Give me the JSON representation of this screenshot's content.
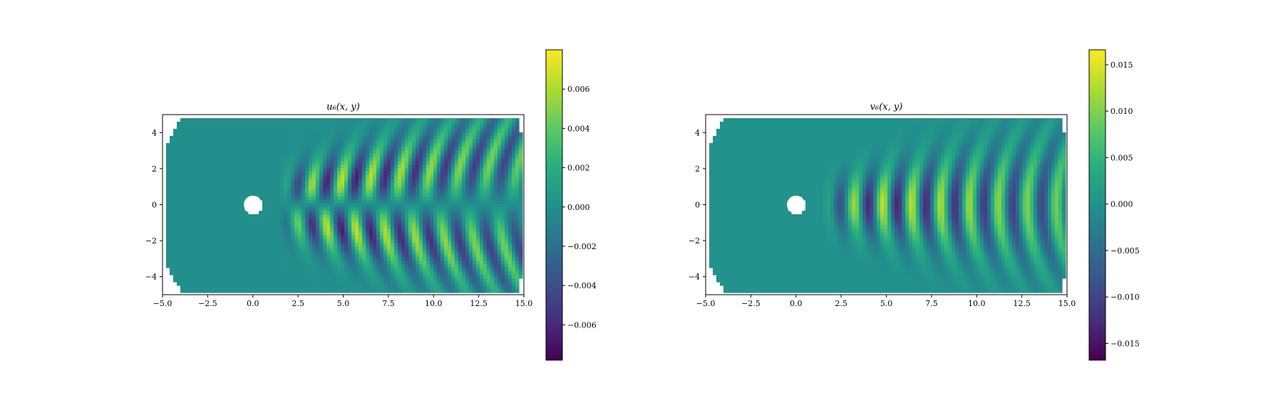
{
  "chart_data": [
    {
      "type": "heatmap",
      "title": "u₆(x, y)",
      "xlabel": "",
      "ylabel": "",
      "xlim": [
        -5.0,
        15.0
      ],
      "ylim": [
        -5.0,
        5.0
      ],
      "xticks": [
        "−5.0",
        "−2.5",
        "0.0",
        "2.5",
        "5.0",
        "7.5",
        "10.0",
        "12.5",
        "15.0"
      ],
      "yticks": [
        "4",
        "2",
        "0",
        "−2",
        "−4"
      ],
      "colormap": "viridis",
      "colorbar": {
        "range": [
          -0.0078,
          0.008
        ],
        "ticks": [
          "0.006",
          "0.004",
          "0.002",
          "0.000",
          "−0.002",
          "−0.004",
          "−0.006"
        ],
        "tick_values": [
          0.006,
          0.004,
          0.002,
          0.0,
          -0.002,
          -0.004,
          -0.006
        ]
      },
      "obstacle": {
        "shape": "circle",
        "center": [
          0.0,
          0.0
        ],
        "radius": 0.5
      },
      "field": {
        "pattern": "antisymmetric wake",
        "wavelength": 1.6,
        "start_x": 1.5,
        "amplitude": 0.008
      }
    },
    {
      "type": "heatmap",
      "title": "v₆(x, y)",
      "xlabel": "",
      "ylabel": "",
      "xlim": [
        -5.0,
        15.0
      ],
      "ylim": [
        -5.0,
        5.0
      ],
      "xticks": [
        "−5.0",
        "−2.5",
        "0.0",
        "2.5",
        "5.0",
        "7.5",
        "10.0",
        "12.5",
        "15.0"
      ],
      "yticks": [
        "4",
        "2",
        "0",
        "−2",
        "−4"
      ],
      "colormap": "viridis",
      "colorbar": {
        "range": [
          -0.0168,
          0.0166
        ],
        "ticks": [
          "0.015",
          "0.010",
          "0.005",
          "0.000",
          "−0.005",
          "−0.010",
          "−0.015"
        ],
        "tick_values": [
          0.015,
          0.01,
          0.005,
          0.0,
          -0.005,
          -0.01,
          -0.015
        ]
      },
      "obstacle": {
        "shape": "circle",
        "center": [
          0.0,
          0.0
        ],
        "radius": 0.5
      },
      "field": {
        "pattern": "symmetric wake",
        "wavelength": 1.6,
        "start_x": 1.5,
        "amplitude": 0.0165
      }
    }
  ]
}
